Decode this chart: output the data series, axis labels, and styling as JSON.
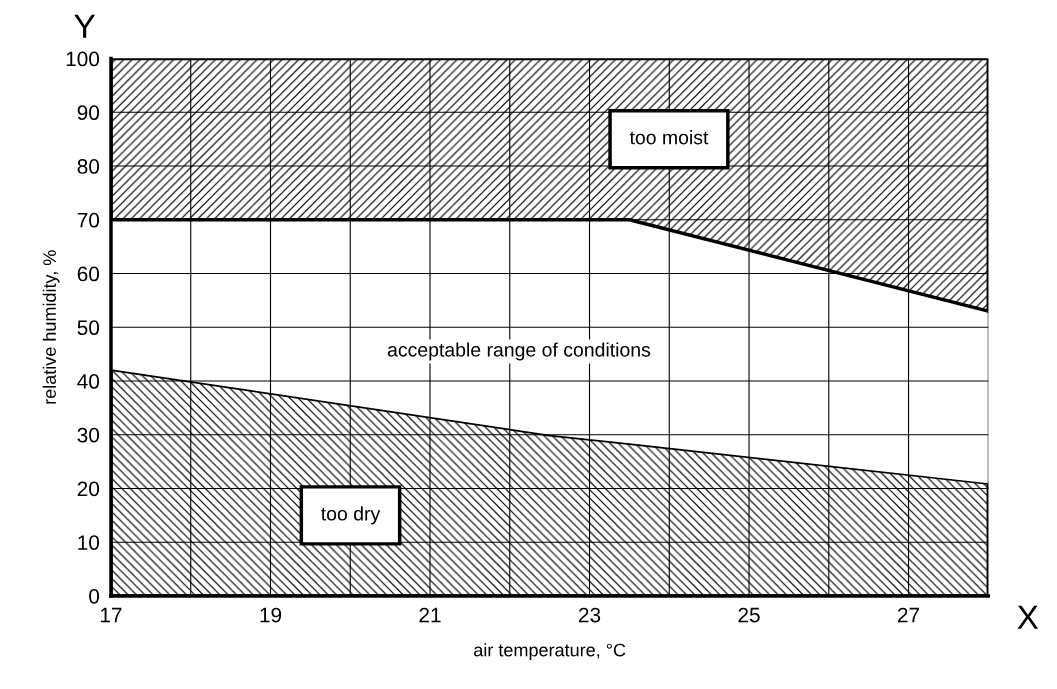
{
  "chart_data": {
    "type": "area",
    "stacked": true,
    "xlabel": "air temperature, °C",
    "ylabel": "relative humidity, %",
    "x": [
      17,
      22.5,
      23.5,
      28
    ],
    "series": [
      {
        "color": "#000000",
        "values": [
          42.2,
          30,
          28.4,
          21
        ]
      },
      {
        "color": "#ffffff",
        "values": [
          27.8,
          40,
          41.6,
          32
        ]
      },
      {
        "color": "#000000",
        "values": [
          30,
          30,
          30,
          47
        ]
      }
    ],
    "xlim": [
      17,
      28
    ],
    "ylim": [
      0,
      100
    ],
    "xticks": [
      17,
      {
        "value": 18,
        "label": null
      },
      19,
      {
        "value": 20,
        "label": null
      },
      21,
      {
        "value": 22,
        "label": null
      },
      23,
      {
        "value": 24,
        "label": null
      },
      25,
      {
        "value": 26,
        "label": null
      },
      27,
      {
        "value": 28,
        "label": null
      }
    ],
    "yticks": [
      0,
      10,
      20,
      30,
      40,
      50,
      60,
      70,
      80,
      90,
      100
    ],
    "grid": true,
    "annotations": [
      "too moist",
      "acceptable range of conditions",
      "too dry",
      "X",
      "Y"
    ]
  }
}
